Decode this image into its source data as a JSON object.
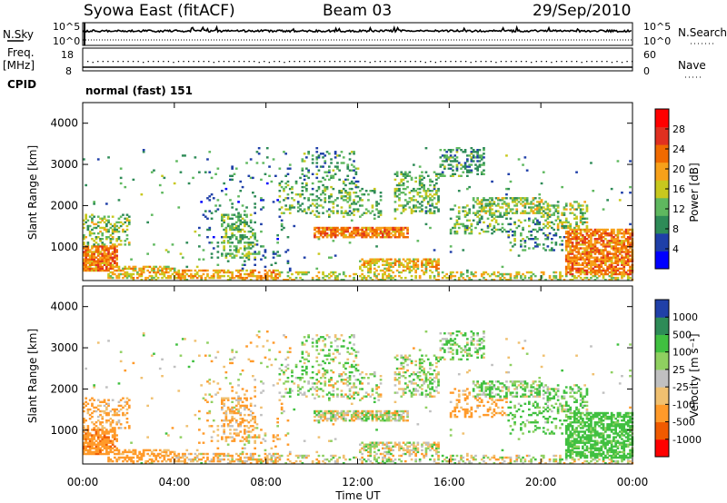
{
  "header": {
    "station": "Syowa East (fitACF)",
    "beam": "Beam 03",
    "date": "29/Sep/2010"
  },
  "left_labels": {
    "nsky": "N.Sky",
    "freq": "Freq.",
    "freq_unit": "[MHz]",
    "cpid": "CPID"
  },
  "right_labels": {
    "nsearch": "N.Search",
    "nave": "Nave"
  },
  "cpid_text": "normal (fast) 151",
  "colors": {
    "power_scale": [
      "#0000ff",
      "#1f3fa8",
      "#2e8b57",
      "#5fb85f",
      "#c8c81e",
      "#f7a11a",
      "#f06a00",
      "#e03020",
      "#ff0000"
    ],
    "velocity_scale": [
      "#ff0000",
      "#f05a00",
      "#ff9a2a",
      "#f0c070",
      "#c0c0c0",
      "#8fd060",
      "#40c040",
      "#2e8b57",
      "#2040a8"
    ]
  },
  "chart_data": [
    {
      "type": "line",
      "name": "noise-panel",
      "series": [
        {
          "name": "N.Sky"
        },
        {
          "name": "N.Search"
        }
      ],
      "y_left_ticks": [
        "10^5",
        "10^0"
      ],
      "y_right_ticks": [
        "10^5",
        "10^0"
      ]
    },
    {
      "type": "scatter",
      "name": "frequency-nave-panel",
      "series": [
        {
          "name": "Freq."
        },
        {
          "name": "Nave"
        }
      ],
      "y_left_ticks": [
        "18",
        "8"
      ],
      "y_right_ticks": [
        "60",
        "0"
      ]
    },
    {
      "type": "heatmap",
      "name": "power-panel",
      "ylabel": "Slant Range [km]",
      "ylim": [
        180,
        4500
      ],
      "y_ticks": [
        "4000",
        "3000",
        "2000",
        "1000"
      ],
      "colorbar_label": "Power [dB]",
      "colorbar_ticks": [
        "28",
        "24",
        "20",
        "16",
        "12",
        "8",
        "4"
      ],
      "colorbar_range": [
        0,
        32
      ]
    },
    {
      "type": "heatmap",
      "name": "velocity-panel",
      "ylabel": "Slant Range [km]",
      "ylim": [
        180,
        4500
      ],
      "y_ticks": [
        "4000",
        "3000",
        "2000",
        "1000"
      ],
      "colorbar_label": "Velocity [m s⁻¹]",
      "colorbar_ticks": [
        "1000",
        "500",
        "100",
        "25",
        "-25",
        "-100",
        "-500",
        "-1000"
      ]
    }
  ],
  "x_axis": {
    "label": "Time UT",
    "ticks": [
      "00:00",
      "04:00",
      "08:00",
      "12:00",
      "16:00",
      "20:00",
      "00:00"
    ],
    "range_hours": [
      0,
      24
    ]
  }
}
